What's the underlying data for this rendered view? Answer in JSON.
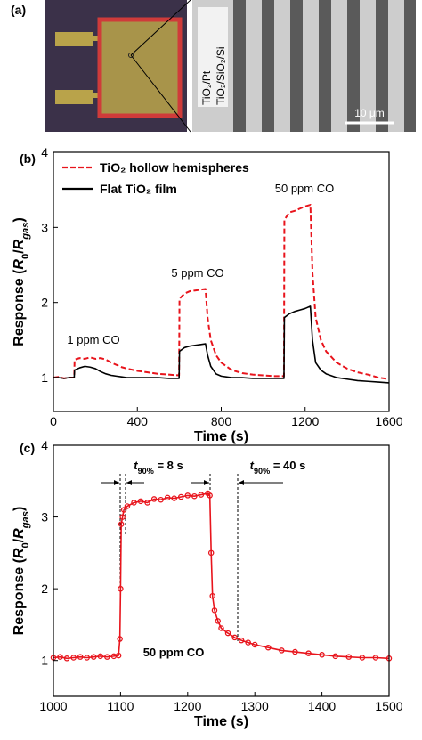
{
  "panel_a": {
    "label": "(a)",
    "text_left": "TiO₂/Pt",
    "text_right": "TiO₂/SiO₂/Si",
    "scale_bar": "10 μm"
  },
  "chart_data": [
    {
      "type": "line",
      "panel_label": "(b)",
      "xlabel": "Time (s)",
      "ylabel": [
        {
          "text": "Response ("
        },
        {
          "text": "R",
          "italic": true
        },
        {
          "text": "0",
          "sub": true
        },
        {
          "text": "/"
        },
        {
          "text": "R",
          "italic": true
        },
        {
          "text": "gas",
          "sub": true,
          "italic": true
        },
        {
          "text": ")"
        }
      ],
      "xlim": [
        0,
        1600
      ],
      "xticks": [
        0,
        400,
        800,
        1200,
        1600
      ],
      "ylim": [
        0.55,
        4
      ],
      "yticks": [
        1,
        2,
        3,
        4
      ],
      "grid": false,
      "legend": "top-left",
      "annotations": [
        [
          {
            "text": "1 ppm CO"
          }
        ],
        [
          {
            "text": "5 ppm CO"
          }
        ],
        [
          {
            "text": "50 ppm CO"
          }
        ]
      ],
      "x": [
        0,
        25,
        50,
        75,
        99,
        101,
        125,
        150,
        175,
        200,
        225,
        250,
        275,
        300,
        325,
        350,
        400,
        450,
        500,
        550,
        599,
        601,
        625,
        650,
        675,
        700,
        725,
        735,
        750,
        775,
        800,
        850,
        900,
        950,
        1000,
        1050,
        1099,
        1101,
        1125,
        1150,
        1175,
        1200,
        1225,
        1235,
        1250,
        1275,
        1300,
        1350,
        1400,
        1450,
        1500,
        1550,
        1600
      ],
      "series": [
        {
          "name": "TiO₂ hollow hemispheres",
          "color": "#e8141c",
          "dashed": true,
          "values": [
            1.0,
            1.01,
            0.99,
            1.0,
            1.0,
            1.24,
            1.26,
            1.25,
            1.27,
            1.25,
            1.26,
            1.24,
            1.2,
            1.17,
            1.14,
            1.12,
            1.09,
            1.07,
            1.05,
            1.04,
            1.03,
            2.05,
            2.12,
            2.15,
            2.16,
            2.17,
            2.18,
            1.8,
            1.5,
            1.3,
            1.2,
            1.1,
            1.06,
            1.04,
            1.03,
            1.02,
            1.02,
            3.1,
            3.2,
            3.22,
            3.25,
            3.28,
            3.3,
            2.4,
            1.8,
            1.5,
            1.35,
            1.2,
            1.12,
            1.07,
            1.04,
            1.0,
            0.98
          ]
        },
        {
          "name": "Flat TiO₂ film",
          "color": "#000000",
          "dashed": false,
          "values": [
            1.0,
            1.0,
            0.99,
            1.0,
            1.0,
            1.1,
            1.13,
            1.15,
            1.14,
            1.12,
            1.08,
            1.05,
            1.03,
            1.02,
            1.01,
            1.0,
            1.0,
            1.0,
            1.0,
            0.99,
            0.99,
            1.35,
            1.4,
            1.42,
            1.43,
            1.44,
            1.45,
            1.3,
            1.15,
            1.05,
            1.02,
            1.0,
            1.0,
            0.99,
            0.99,
            0.99,
            0.99,
            1.8,
            1.85,
            1.88,
            1.9,
            1.92,
            1.95,
            1.5,
            1.2,
            1.1,
            1.05,
            1.0,
            0.98,
            0.96,
            0.95,
            0.94,
            0.93
          ]
        }
      ]
    },
    {
      "type": "line",
      "panel_label": "(c)",
      "xlabel": "Time (s)",
      "ylabel": [
        {
          "text": "Response ("
        },
        {
          "text": "R",
          "italic": true
        },
        {
          "text": "0",
          "sub": true
        },
        {
          "text": "/"
        },
        {
          "text": "R",
          "italic": true
        },
        {
          "text": "gas",
          "sub": true,
          "italic": true
        },
        {
          "text": ")"
        }
      ],
      "xlim": [
        1000,
        1500
      ],
      "xticks": [
        1000,
        1100,
        1200,
        1300,
        1400,
        1500
      ],
      "ylim": [
        0.5,
        4
      ],
      "yticks": [
        1,
        2,
        3,
        4
      ],
      "grid": false,
      "annotations": [
        [
          {
            "text": "t",
            "italic": true
          },
          {
            "text": "90%",
            "sub": true
          },
          {
            "text": " = 8 s"
          }
        ],
        [
          {
            "text": "t",
            "italic": true
          },
          {
            "text": "90%",
            "sub": true
          },
          {
            "text": " = 40 s"
          }
        ],
        [
          {
            "text": "50 ppm CO"
          }
        ]
      ],
      "x": [
        1000,
        1010,
        1020,
        1030,
        1040,
        1050,
        1060,
        1070,
        1080,
        1090,
        1097,
        1099,
        1100,
        1101,
        1103,
        1105,
        1110,
        1120,
        1130,
        1140,
        1150,
        1160,
        1170,
        1180,
        1190,
        1200,
        1210,
        1220,
        1230,
        1233,
        1235,
        1237,
        1240,
        1245,
        1250,
        1260,
        1270,
        1280,
        1290,
        1300,
        1320,
        1340,
        1360,
        1380,
        1400,
        1420,
        1440,
        1460,
        1480,
        1500
      ],
      "series": [
        {
          "color": "#e8141c",
          "dashed": false,
          "markers": true,
          "values": [
            1.04,
            1.05,
            1.03,
            1.04,
            1.05,
            1.04,
            1.05,
            1.06,
            1.05,
            1.06,
            1.07,
            1.3,
            2.0,
            2.9,
            3.0,
            3.1,
            3.15,
            3.2,
            3.22,
            3.2,
            3.25,
            3.24,
            3.27,
            3.26,
            3.28,
            3.3,
            3.29,
            3.31,
            3.33,
            3.3,
            2.5,
            1.9,
            1.7,
            1.55,
            1.45,
            1.38,
            1.32,
            1.28,
            1.25,
            1.22,
            1.18,
            1.14,
            1.12,
            1.1,
            1.08,
            1.06,
            1.05,
            1.04,
            1.04,
            1.03
          ]
        }
      ]
    }
  ]
}
